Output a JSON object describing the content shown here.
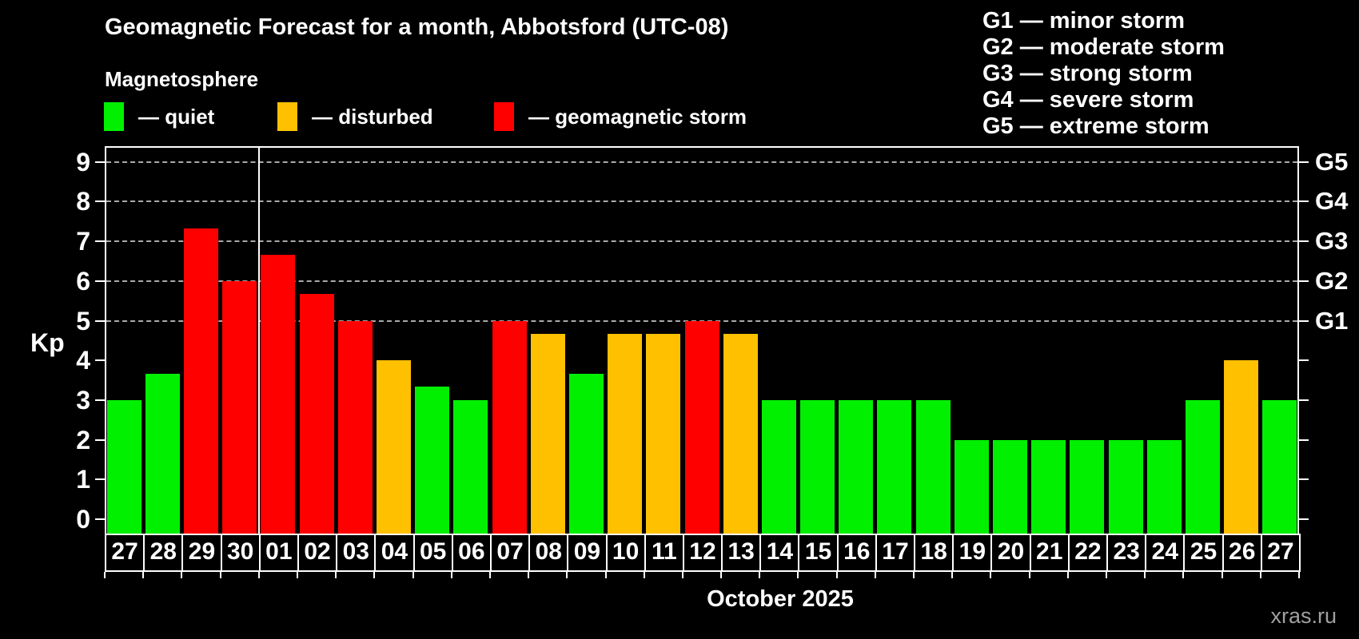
{
  "header": {
    "title": "Geomagnetic Forecast for a month, Abbotsford (UTC-08)",
    "subtitle": "Magnetosphere"
  },
  "legend": {
    "items": [
      {
        "label": "— quiet",
        "status": "quiet",
        "color": "#00F000"
      },
      {
        "label": "— disturbed",
        "status": "disturbed",
        "color": "#FFC000"
      },
      {
        "label": "— geomagnetic storm",
        "status": "storm",
        "color": "#FF0000"
      }
    ]
  },
  "g_scale_legend": {
    "items": [
      "G1 — minor storm",
      "G2 — moderate storm",
      "G3 — strong storm",
      "G4 — severe storm",
      "G5 — extreme storm"
    ]
  },
  "chart_data": {
    "type": "bar",
    "title": "Geomagnetic Forecast for a month, Abbotsford (UTC-08)",
    "subtitle": "Magnetosphere",
    "ylabel": "Kp",
    "xlabel": "October 2025",
    "ylim": [
      0,
      9
    ],
    "yticks": [
      0,
      1,
      2,
      3,
      4,
      5,
      6,
      7,
      8,
      9
    ],
    "gridlines_at": [
      5,
      6,
      7,
      8,
      9
    ],
    "grid": "dashed horizontal at storm levels only",
    "right_axis_labels": [
      {
        "value": 5,
        "label": "G1"
      },
      {
        "value": 6,
        "label": "G2"
      },
      {
        "value": 7,
        "label": "G3"
      },
      {
        "value": 8,
        "label": "G4"
      },
      {
        "value": 9,
        "label": "G5"
      }
    ],
    "categories": [
      "27",
      "28",
      "29",
      "30",
      "01",
      "02",
      "03",
      "04",
      "05",
      "06",
      "07",
      "08",
      "09",
      "10",
      "11",
      "12",
      "13",
      "14",
      "15",
      "16",
      "17",
      "18",
      "19",
      "20",
      "21",
      "22",
      "23",
      "24",
      "25",
      "26",
      "27"
    ],
    "values": [
      3,
      3.67,
      7.33,
      6,
      6.67,
      5.67,
      5,
      4,
      3.33,
      3,
      5,
      4.67,
      3.67,
      4.67,
      4.67,
      5,
      4.67,
      3,
      3,
      3,
      3,
      3,
      2,
      2,
      2,
      2,
      2,
      2,
      3,
      4,
      3
    ],
    "statuses": [
      "quiet",
      "quiet",
      "storm",
      "storm",
      "storm",
      "storm",
      "storm",
      "disturbed",
      "quiet",
      "quiet",
      "storm",
      "disturbed",
      "quiet",
      "disturbed",
      "disturbed",
      "storm",
      "disturbed",
      "quiet",
      "quiet",
      "quiet",
      "quiet",
      "quiet",
      "quiet",
      "quiet",
      "quiet",
      "quiet",
      "quiet",
      "quiet",
      "quiet",
      "disturbed",
      "quiet"
    ],
    "month_separator_after_index": 3,
    "colors": {
      "quiet": "#00F000",
      "disturbed": "#FFC000",
      "storm": "#FF0000"
    },
    "gridline_color": "#AAAAAA",
    "axis_color": "#FFFFFF"
  },
  "footer": {
    "month_label": "October 2025",
    "watermark": "xras.ru"
  }
}
